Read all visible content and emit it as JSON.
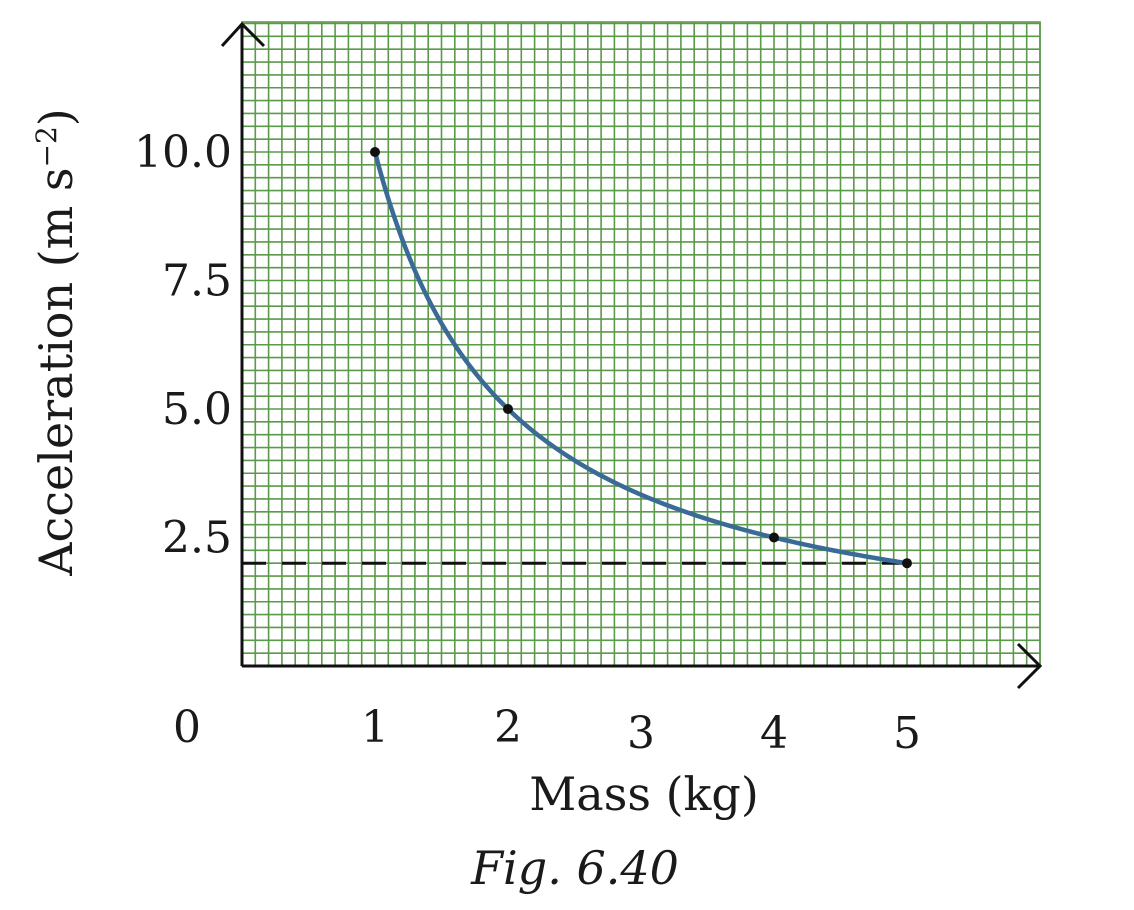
{
  "chart_data": {
    "type": "line",
    "title": "",
    "caption": "Fig. 6.40",
    "xlabel": "Mass (kg)",
    "ylabel": "Acceleration (m s",
    "ylabel_sup": "−2",
    "ylabel_close": ")",
    "origin_label": "0",
    "xlim": [
      0,
      5
    ],
    "ylim": [
      0,
      10.0
    ],
    "x_ticks": [
      "1",
      "2",
      "3",
      "4",
      "5"
    ],
    "y_ticks": [
      "2.5",
      "5.0",
      "7.5",
      "10.0"
    ],
    "grid": true,
    "grid_color": "#5b9a4a",
    "curve_color": "#3a6a96",
    "curve_function": "a = 10 / m",
    "series": [
      {
        "x": [
          1,
          2,
          4,
          5
        ],
        "y": [
          10.0,
          5.0,
          2.5,
          2.0
        ]
      }
    ],
    "reference_line": {
      "y": 2.0,
      "style": "dashed"
    }
  }
}
